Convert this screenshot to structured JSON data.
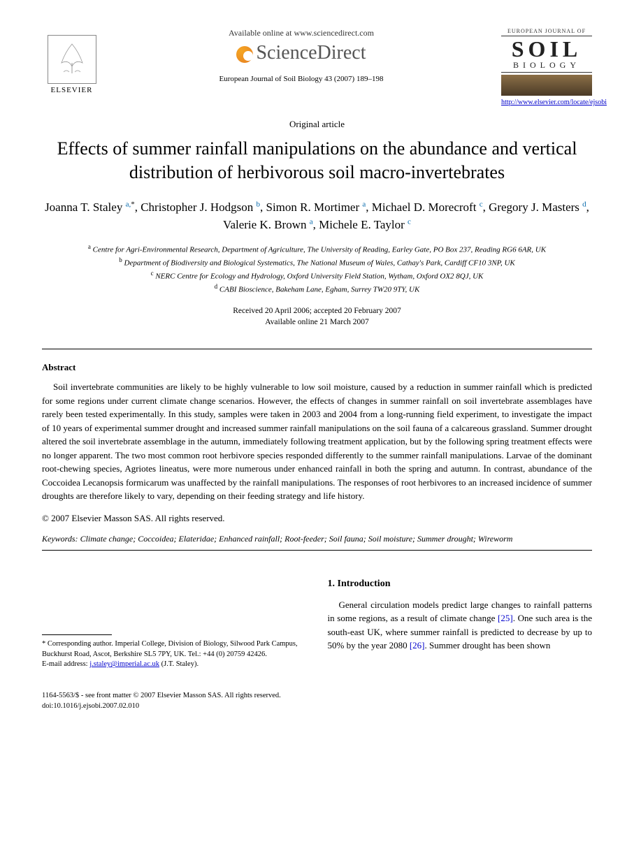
{
  "header": {
    "elsevier_label": "ELSEVIER",
    "available_online": "Available online at www.sciencedirect.com",
    "sciencedirect": "ScienceDirect",
    "journal_ref": "European Journal of Soil Biology 43 (2007) 189–198",
    "journal_logo": {
      "line1": "EUROPEAN JOURNAL OF",
      "soil": "SOIL",
      "biology": "BIOLOGY"
    },
    "journal_link": "http://www.elsevier.com/locate/ejsobi"
  },
  "article_type": "Original article",
  "title": "Effects of summer rainfall manipulations on the abundance and vertical distribution of herbivorous soil macro-invertebrates",
  "authors_html": "Joanna T. Staley <sup>a,</sup><sup class='ast'>*</sup>, Christopher J. Hodgson <sup>b</sup>, Simon R. Mortimer <sup>a</sup>, Michael D. Morecroft <sup>c</sup>, Gregory J. Masters <sup>d</sup>, Valerie K. Brown <sup>a</sup>, Michele E. Taylor <sup>c</sup>",
  "affiliations": [
    {
      "sup": "a",
      "text": "Centre for Agri-Environmental Research, Department of Agriculture, The University of Reading, Earley Gate, PO Box 237, Reading RG6 6AR, UK"
    },
    {
      "sup": "b",
      "text": "Department of Biodiversity and Biological Systematics, The National Museum of Wales, Cathay's Park, Cardiff CF10 3NP, UK"
    },
    {
      "sup": "c",
      "text": "NERC Centre for Ecology and Hydrology, Oxford University Field Station, Wytham, Oxford OX2 8QJ, UK"
    },
    {
      "sup": "d",
      "text": "CABI Bioscience, Bakeham Lane, Egham, Surrey TW20 9TY, UK"
    }
  ],
  "dates": {
    "received_accepted": "Received 20 April 2006; accepted 20 February 2007",
    "online": "Available online 21 March 2007"
  },
  "abstract": {
    "heading": "Abstract",
    "body": "Soil invertebrate communities are likely to be highly vulnerable to low soil moisture, caused by a reduction in summer rainfall which is predicted for some regions under current climate change scenarios. However, the effects of changes in summer rainfall on soil invertebrate assemblages have rarely been tested experimentally. In this study, samples were taken in 2003 and 2004 from a long-running field experiment, to investigate the impact of 10 years of experimental summer drought and increased summer rainfall manipulations on the soil fauna of a calcareous grassland. Summer drought altered the soil invertebrate assemblage in the autumn, immediately following treatment application, but by the following spring treatment effects were no longer apparent. The two most common root herbivore species responded differently to the summer rainfall manipulations. Larvae of the dominant root-chewing species, Agriotes lineatus, were more numerous under enhanced rainfall in both the spring and autumn. In contrast, abundance of the Coccoidea Lecanopsis formicarum was unaffected by the rainfall manipulations. The responses of root herbivores to an increased incidence of summer droughts are therefore likely to vary, depending on their feeding strategy and life history.",
    "copyright": "© 2007 Elsevier Masson SAS. All rights reserved."
  },
  "keywords": {
    "label": "Keywords:",
    "text": "Climate change; Coccoidea; Elateridae; Enhanced rainfall; Root-feeder; Soil fauna; Soil moisture; Summer drought; Wireworm"
  },
  "corresponding": {
    "text": "* Corresponding author. Imperial College, Division of Biology, Silwood Park Campus, Buckhurst Road, Ascot, Berkshire SL5 7PY, UK. Tel.: +44 (0) 20759 42426.",
    "email_label": "E-mail address:",
    "email": "j.staley@imperial.ac.uk",
    "email_suffix": "(J.T. Staley)."
  },
  "introduction": {
    "heading": "1. Introduction",
    "body_html": "General circulation models predict large changes to rainfall patterns in some regions, as a result of climate change <span class='ref'>[25]</span>. One such area is the south-east UK, where summer rainfall is predicted to decrease by up to 50% by the year 2080 <span class='ref'>[26]</span>. Summer drought has been shown"
  },
  "footer": {
    "line1": "1164-5563/$ - see front matter © 2007 Elsevier Masson SAS. All rights reserved.",
    "line2": "doi:10.1016/j.ejsobi.2007.02.010"
  }
}
